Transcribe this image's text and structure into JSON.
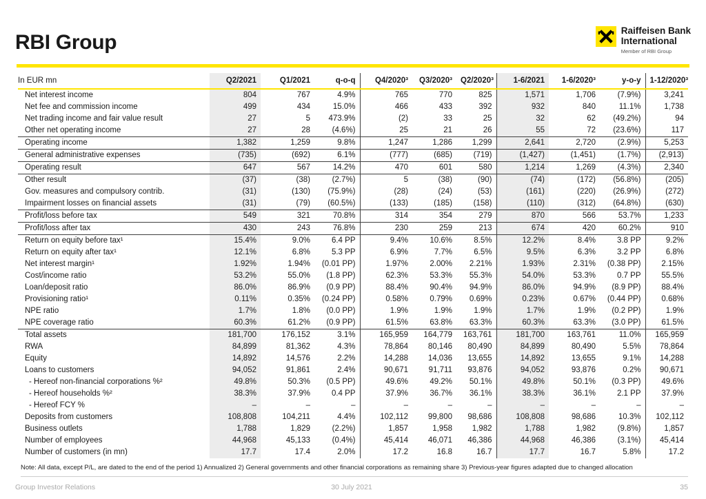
{
  "header": {
    "title": "RBI Group",
    "brand": {
      "line1": "Raiffeisen Bank",
      "line2": "International",
      "member": "Member of RBI Group"
    }
  },
  "table": {
    "unit_label": "In EUR mn",
    "columns": [
      "Q2/2021",
      "Q1/2021",
      "q-o-q",
      "Q4/2020³",
      "Q3/2020³",
      "Q2/2020³",
      "1-6/2021",
      "1-6/2020³",
      "y-o-y",
      "1-12/2020³"
    ],
    "rows": [
      {
        "label": "Net interest income",
        "values": [
          "804",
          "767",
          "4.9%",
          "765",
          "770",
          "825",
          "1,571",
          "1,706",
          "(7.9%)",
          "3,241"
        ]
      },
      {
        "label": "Net fee and commission income",
        "values": [
          "499",
          "434",
          "15.0%",
          "466",
          "433",
          "392",
          "932",
          "840",
          "11.1%",
          "1,738"
        ]
      },
      {
        "label": "Net trading income and fair value result",
        "values": [
          "27",
          "5",
          "473.9%",
          "(2)",
          "33",
          "25",
          "32",
          "62",
          "(49.2%)",
          "94"
        ]
      },
      {
        "label": "Other net operating income",
        "values": [
          "27",
          "28",
          "(4.6%)",
          "25",
          "21",
          "26",
          "55",
          "72",
          "(23.6%)",
          "117"
        ]
      },
      {
        "label": "Operating income",
        "border_top": true,
        "values": [
          "1,382",
          "1,259",
          "9.8%",
          "1,247",
          "1,286",
          "1,299",
          "2,641",
          "2,720",
          "(2.9%)",
          "5,253"
        ]
      },
      {
        "label": "General administrative expenses",
        "border_top": true,
        "values": [
          "(735)",
          "(692)",
          "6.1%",
          "(777)",
          "(685)",
          "(719)",
          "(1,427)",
          "(1,451)",
          "(1.7%)",
          "(2,913)"
        ]
      },
      {
        "label": "Operating result",
        "border_top": true,
        "values": [
          "647",
          "567",
          "14.2%",
          "470",
          "601",
          "580",
          "1,214",
          "1,269",
          "(4.3%)",
          "2,340"
        ]
      },
      {
        "label": "Other result",
        "border_top": true,
        "values": [
          "(37)",
          "(38)",
          "(2.7%)",
          "5",
          "(38)",
          "(90)",
          "(74)",
          "(172)",
          "(56.8%)",
          "(205)"
        ]
      },
      {
        "label": "Gov. measures and compulsory contrib.",
        "values": [
          "(31)",
          "(130)",
          "(75.9%)",
          "(28)",
          "(24)",
          "(53)",
          "(161)",
          "(220)",
          "(26.9%)",
          "(272)"
        ]
      },
      {
        "label": "Impairment losses on financial assets",
        "values": [
          "(31)",
          "(79)",
          "(60.5%)",
          "(133)",
          "(185)",
          "(158)",
          "(110)",
          "(312)",
          "(64.8%)",
          "(630)"
        ]
      },
      {
        "label": "Profit/loss before tax",
        "border_top": true,
        "values": [
          "549",
          "321",
          "70.8%",
          "314",
          "354",
          "279",
          "870",
          "566",
          "53.7%",
          "1,233"
        ]
      },
      {
        "label": "Profit/loss after tax",
        "border_top": true,
        "values": [
          "430",
          "243",
          "76.8%",
          "230",
          "259",
          "213",
          "674",
          "420",
          "60.2%",
          "910"
        ]
      },
      {
        "label": "Return on equity before tax¹",
        "border_top": true,
        "values": [
          "15.4%",
          "9.0%",
          "6.4 PP",
          "9.4%",
          "10.6%",
          "8.5%",
          "12.2%",
          "8.4%",
          "3.8 PP",
          "9.2%"
        ]
      },
      {
        "label": "Return on equity after tax¹",
        "values": [
          "12.1%",
          "6.8%",
          "5.3 PP",
          "6.9%",
          "7.7%",
          "6.5%",
          "9.5%",
          "6.3%",
          "3.2 PP",
          "6.8%"
        ]
      },
      {
        "label": "Net interest margin¹",
        "values": [
          "1.92%",
          "1.94%",
          "(0.01 PP)",
          "1.97%",
          "2.00%",
          "2.21%",
          "1.93%",
          "2.31%",
          "(0.38 PP)",
          "2.15%"
        ]
      },
      {
        "label": "Cost/income ratio",
        "values": [
          "53.2%",
          "55.0%",
          "(1.8 PP)",
          "62.3%",
          "53.3%",
          "55.3%",
          "54.0%",
          "53.3%",
          "0.7 PP",
          "55.5%"
        ]
      },
      {
        "label": "Loan/deposit ratio",
        "values": [
          "86.0%",
          "86.9%",
          "(0.9 PP)",
          "88.4%",
          "90.4%",
          "94.9%",
          "86.0%",
          "94.9%",
          "(8.9 PP)",
          "88.4%"
        ]
      },
      {
        "label": "Provisioning ratio¹",
        "values": [
          "0.11%",
          "0.35%",
          "(0.24 PP)",
          "0.58%",
          "0.79%",
          "0.69%",
          "0.23%",
          "0.67%",
          "(0.44 PP)",
          "0.68%"
        ]
      },
      {
        "label": "NPE ratio",
        "values": [
          "1.7%",
          "1.8%",
          "(0.0 PP)",
          "1.9%",
          "1.9%",
          "1.9%",
          "1.7%",
          "1.9%",
          "(0.2 PP)",
          "1.9%"
        ]
      },
      {
        "label": "NPE coverage ratio",
        "values": [
          "60.3%",
          "61.2%",
          "(0.9 PP)",
          "61.5%",
          "63.8%",
          "63.3%",
          "60.3%",
          "63.3%",
          "(3.0 PP)",
          "61.5%"
        ]
      },
      {
        "label": "Total assets",
        "border_top": true,
        "values": [
          "181,700",
          "176,152",
          "3.1%",
          "165,959",
          "164,779",
          "163,761",
          "181,700",
          "163,761",
          "11.0%",
          "165,959"
        ]
      },
      {
        "label": "RWA",
        "values": [
          "84,899",
          "81,362",
          "4.3%",
          "78,864",
          "80,146",
          "80,490",
          "84,899",
          "80,490",
          "5.5%",
          "78,864"
        ]
      },
      {
        "label": "Equity",
        "values": [
          "14,892",
          "14,576",
          "2.2%",
          "14,288",
          "14,036",
          "13,655",
          "14,892",
          "13,655",
          "9.1%",
          "14,288"
        ]
      },
      {
        "label": "Loans to customers",
        "values": [
          "94,052",
          "91,861",
          "2.4%",
          "90,671",
          "91,711",
          "93,876",
          "94,052",
          "93,876",
          "0.2%",
          "90,671"
        ]
      },
      {
        "label": "- Hereof non-financial corporations %²",
        "indent": true,
        "values": [
          "49.8%",
          "50.3%",
          "(0.5 PP)",
          "49.6%",
          "49.2%",
          "50.1%",
          "49.8%",
          "50.1%",
          "(0.3 PP)",
          "49.6%"
        ]
      },
      {
        "label": "- Hereof households %²",
        "indent": true,
        "values": [
          "38.3%",
          "37.9%",
          "0.4 PP",
          "37.9%",
          "36.7%",
          "36.1%",
          "38.3%",
          "36.1%",
          "2.1 PP",
          "37.9%"
        ]
      },
      {
        "label": "- Hereof FCY %",
        "indent": true,
        "values": [
          "–",
          "–",
          "–",
          "–",
          "–",
          "–",
          "–",
          "–",
          "–",
          "–"
        ]
      },
      {
        "label": "Deposits from customers",
        "values": [
          "108,808",
          "104,211",
          "4.4%",
          "102,112",
          "99,800",
          "98,686",
          "108,808",
          "98,686",
          "10.3%",
          "102,112"
        ]
      },
      {
        "label": "Business outlets",
        "values": [
          "1,788",
          "1,829",
          "(2.2%)",
          "1,857",
          "1,958",
          "1,982",
          "1,788",
          "1,982",
          "(9.8%)",
          "1,857"
        ]
      },
      {
        "label": "Number of employees",
        "values": [
          "44,968",
          "45,133",
          "(0.4%)",
          "45,414",
          "46,071",
          "46,386",
          "44,968",
          "46,386",
          "(3.1%)",
          "45,414"
        ]
      },
      {
        "label": "Number of customers (in mn)",
        "values": [
          "17.7",
          "17.4",
          "2.0%",
          "17.2",
          "16.8",
          "16.7",
          "17.7",
          "16.7",
          "5.8%",
          "17.2"
        ]
      }
    ]
  },
  "note": "Note: All data, except P/L, are dated to the end of the period 1) Annualized  2) General governments and other financial corporations as remaining share  3) Previous-year figures adapted due to changed allocation",
  "footer": {
    "left": "Group Investor Relations",
    "date": "30 July 2021",
    "page_number": "35"
  },
  "colors": {
    "accent_yellow": "#ffe500",
    "column_shade": "#ececec"
  }
}
